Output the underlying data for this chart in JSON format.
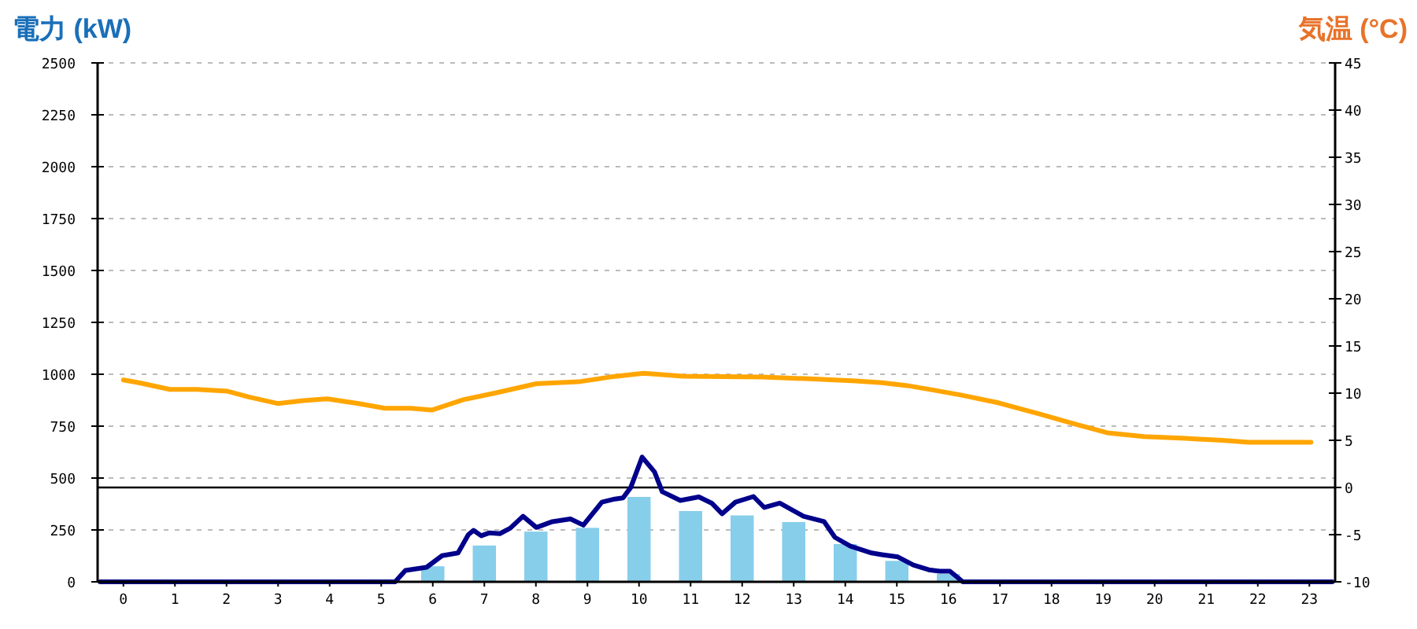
{
  "chart_data": {
    "type": "bar",
    "ylabel": "電力 (kW)",
    "y2label": "気温 (°C)",
    "x": [
      0,
      1,
      2,
      3,
      4,
      5,
      6,
      7,
      8,
      9,
      10,
      11,
      12,
      13,
      14,
      15,
      16,
      17,
      18,
      19,
      20,
      21,
      22,
      23
    ],
    "xlim": [
      -0.5,
      23.5
    ],
    "xticks": [
      0,
      1,
      2,
      3,
      4,
      5,
      6,
      7,
      8,
      9,
      10,
      11,
      12,
      13,
      14,
      15,
      16,
      17,
      18,
      19,
      20,
      21,
      22,
      23
    ],
    "ylim": [
      0,
      2500
    ],
    "yticks": [
      0,
      250,
      500,
      750,
      1000,
      1250,
      1500,
      1750,
      2000,
      2250,
      2500
    ],
    "y2lim": [
      -10,
      45
    ],
    "y2ticks": [
      -10,
      -5,
      0,
      5,
      10,
      15,
      20,
      25,
      30,
      35,
      40,
      45
    ],
    "grid": "y",
    "marker": "none",
    "line_style": "solid",
    "ref_lines": [
      {
        "axis": "y2",
        "value": 0,
        "color": "#000000"
      }
    ],
    "series": [
      {
        "color": "#87ceeb",
        "values": [
          0,
          0,
          0,
          0,
          0,
          0,
          75,
          175,
          242,
          260,
          409,
          341,
          320,
          288,
          182,
          101,
          38,
          0,
          0,
          0,
          0,
          0,
          0,
          0
        ]
      },
      {
        "type": "line",
        "color": "#00008b",
        "x": [
          -0.45,
          5.27,
          5.47,
          5.88,
          6.18,
          6.49,
          6.69,
          6.79,
          6.94,
          7.1,
          7.3,
          7.5,
          7.75,
          8.01,
          8.32,
          8.67,
          8.92,
          9.28,
          9.53,
          9.69,
          9.84,
          10.06,
          10.3,
          10.45,
          10.8,
          11.16,
          11.41,
          11.61,
          11.87,
          12.22,
          12.43,
          12.73,
          13.19,
          13.59,
          13.8,
          14.1,
          14.51,
          14.71,
          15.02,
          15.32,
          15.62,
          15.83,
          16.03,
          16.28,
          23.44
        ],
        "values": [
          0,
          0,
          55,
          70,
          126,
          139,
          227,
          248,
          222,
          236,
          232,
          258,
          316,
          262,
          290,
          303,
          273,
          384,
          399,
          404,
          455,
          601,
          530,
          434,
          392,
          409,
          379,
          328,
          384,
          411,
          358,
          379,
          316,
          290,
          214,
          172,
          139,
          131,
          120,
          81,
          58,
          51,
          51,
          0,
          0
        ]
      },
      {
        "type": "line",
        "axis": "y2",
        "color": "#ffa500",
        "x": [
          0,
          0.3,
          0.9,
          1.41,
          2.02,
          2.43,
          2.99,
          3.49,
          3.95,
          4.56,
          5.07,
          5.57,
          5.98,
          6.59,
          7.2,
          8.01,
          8.82,
          9.43,
          10.09,
          10.85,
          12.38,
          13.39,
          14.2,
          14.71,
          15.2,
          15.73,
          16.24,
          16.95,
          17.76,
          18.47,
          19.08,
          19.79,
          20.6,
          21.31,
          21.82,
          23.03
        ],
        "values": [
          11.4,
          11.1,
          10.4,
          10.4,
          10.2,
          9.6,
          8.9,
          9.2,
          9.4,
          8.9,
          8.4,
          8.4,
          8.2,
          9.3,
          10.0,
          11.0,
          11.2,
          11.7,
          12.1,
          11.8,
          11.7,
          11.5,
          11.3,
          11.1,
          10.8,
          10.3,
          9.8,
          9.0,
          7.8,
          6.7,
          5.8,
          5.4,
          5.2,
          5.0,
          4.8,
          4.8
        ]
      }
    ]
  }
}
